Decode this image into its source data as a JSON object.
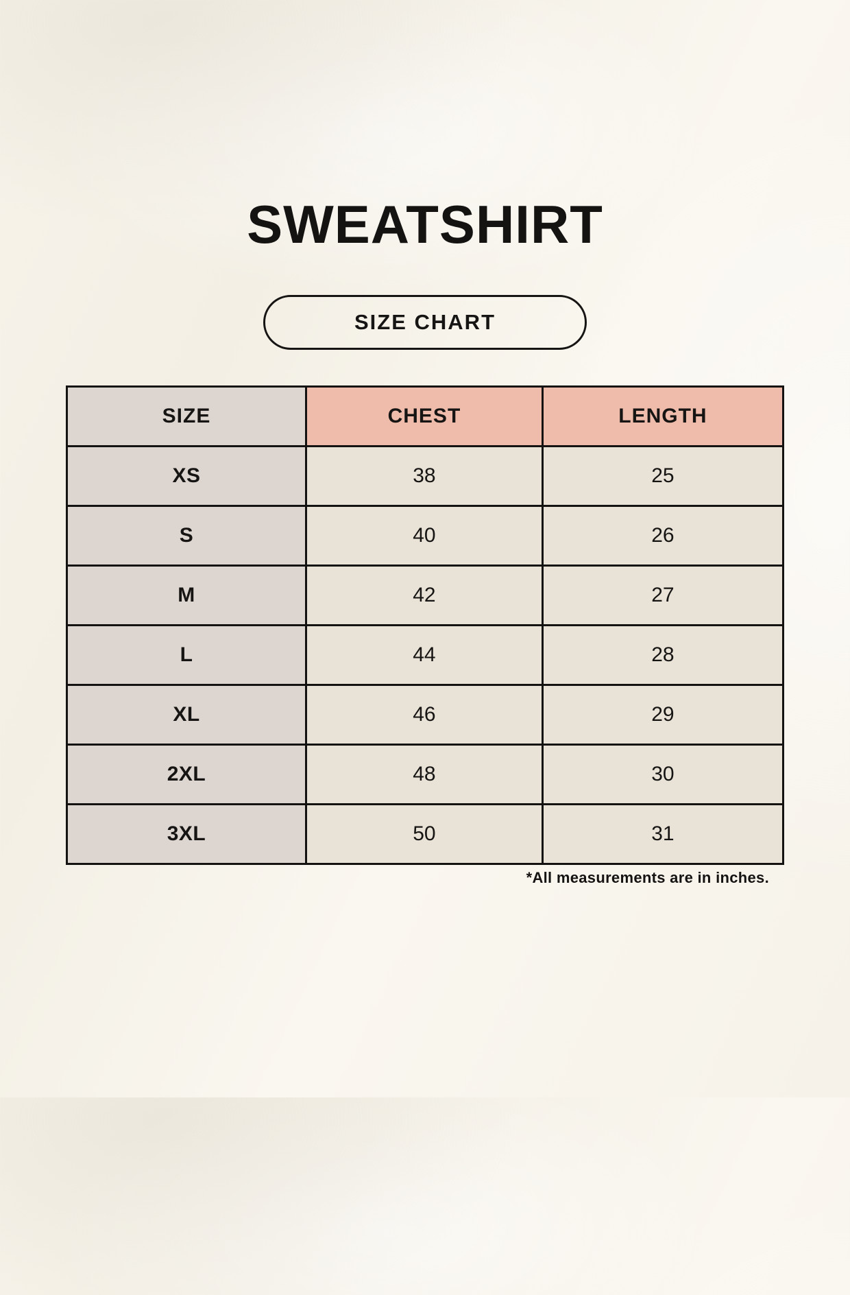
{
  "page": {
    "title": "SWEATSHIRT",
    "badge_label": "SIZE CHART",
    "footnote": "*All measurements are in inches."
  },
  "colors": {
    "background": "#f6f2e9",
    "size_column": "#ddd6d0",
    "header_accent": "#efbbaa",
    "value_cell": "#e9e2d6",
    "border": "#141312",
    "text": "#161514"
  },
  "chart_data": {
    "type": "table",
    "title": "SWEATSHIRT SIZE CHART",
    "columns": [
      "SIZE",
      "CHEST",
      "LENGTH"
    ],
    "units": "inches",
    "rows": [
      {
        "size": "XS",
        "chest": 38,
        "length": 25
      },
      {
        "size": "S",
        "chest": 40,
        "length": 26
      },
      {
        "size": "M",
        "chest": 42,
        "length": 27
      },
      {
        "size": "L",
        "chest": 44,
        "length": 28
      },
      {
        "size": "XL",
        "chest": 46,
        "length": 29
      },
      {
        "size": "2XL",
        "chest": 48,
        "length": 30
      },
      {
        "size": "3XL",
        "chest": 50,
        "length": 31
      }
    ]
  }
}
